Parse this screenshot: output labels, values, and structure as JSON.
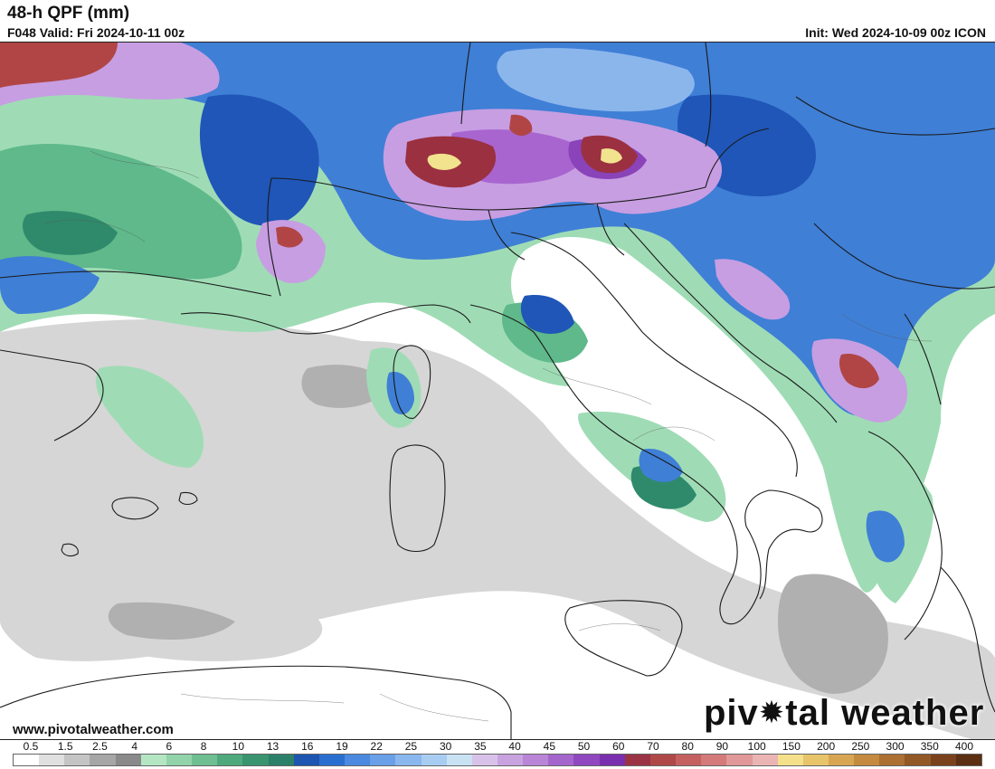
{
  "header": {
    "title": "48-h QPF (mm)",
    "valid": "F048 Valid: Fri 2024-10-11 00z",
    "init": "Init: Wed 2024-10-09 00z ICON"
  },
  "footer": {
    "url": "www.pivotalweather.com",
    "brand_before": "piv",
    "brand_after": "tal weather"
  },
  "legend": {
    "labels": [
      "0.5",
      "1.5",
      "2.5",
      "4",
      "6",
      "8",
      "10",
      "13",
      "16",
      "19",
      "22",
      "25",
      "30",
      "35",
      "40",
      "45",
      "50",
      "60",
      "70",
      "80",
      "90",
      "100",
      "150",
      "200",
      "250",
      "300",
      "350",
      "400"
    ],
    "colors": [
      "#ffffff",
      "#e0e0e0",
      "#c4c4c4",
      "#a6a6a6",
      "#8a8a8a",
      "#b4e6c4",
      "#92d3aa",
      "#6fbf92",
      "#4fa97c",
      "#3a9470",
      "#2c7f68",
      "#1d55b0",
      "#2a6fd0",
      "#4b8ae0",
      "#6aa0e8",
      "#8ab8ee",
      "#a9cdf2",
      "#c8e2f4",
      "#d9c2ea",
      "#c9a3e0",
      "#b985d6",
      "#a466cc",
      "#8f48bf",
      "#7a2fae",
      "#9a3344",
      "#b04848",
      "#c46060",
      "#d47a7a",
      "#e09898",
      "#ebb4b4",
      "#f4e08a",
      "#e8c46a",
      "#d8a652",
      "#c48a40",
      "#ab7032",
      "#925826",
      "#7a421c",
      "#5c2e12"
    ]
  },
  "map": {
    "colors": {
      "gray_light": "#d6d6d6",
      "gray_mid": "#b0b0b0",
      "green_light": "#9fdcb5",
      "green_mid": "#5fb98a",
      "green_dark": "#2f8a6c",
      "blue_dark": "#1f56b8",
      "blue_mid": "#3f7fd6",
      "blue_light": "#8bb6ec",
      "blue_pale": "#c0dbf2",
      "purple_light": "#c79ee2",
      "purple_mid": "#a865cf",
      "purple_dark": "#8a43b9",
      "red_mid": "#b14545",
      "red_dark": "#9b3040",
      "yellow": "#f2e38e",
      "border": "#1a1a1a"
    }
  }
}
